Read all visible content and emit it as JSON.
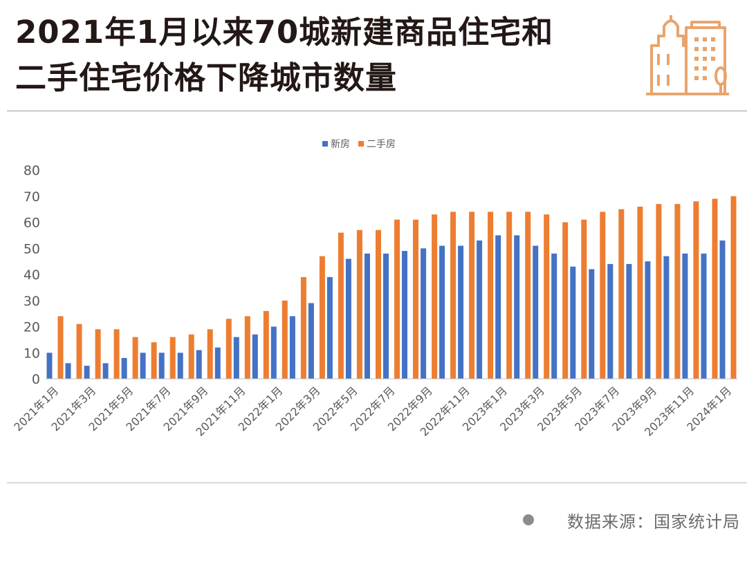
{
  "title": {
    "line1": "2021年1月以来70城新建商品住宅和",
    "line2": "二手住宅价格下降城市数量"
  },
  "source": "数据来源：国家统计局",
  "colors": {
    "new_house": "#4472C4",
    "second_hand": "#ED7D31",
    "accent": "#E8A46B",
    "text_dark": "#231815",
    "axis_text": "#595959"
  },
  "chart_data": {
    "type": "bar",
    "legend_position": "top-center",
    "grid": false,
    "ylim": [
      0,
      80
    ],
    "yticks": [
      0,
      10,
      20,
      30,
      40,
      50,
      60,
      70,
      80
    ],
    "categories": [
      "2021年1月",
      "2021年2月",
      "2021年3月",
      "2021年4月",
      "2021年5月",
      "2021年6月",
      "2021年7月",
      "2021年8月",
      "2021年9月",
      "2021年10月",
      "2021年11月",
      "2021年12月",
      "2022年1月",
      "2022年2月",
      "2022年3月",
      "2022年4月",
      "2022年5月",
      "2022年6月",
      "2022年7月",
      "2022年8月",
      "2022年9月",
      "2022年10月",
      "2022年11月",
      "2022年12月",
      "2023年1月",
      "2023年2月",
      "2023年3月",
      "2023年4月",
      "2023年5月",
      "2023年6月",
      "2023年7月",
      "2023年8月",
      "2023年9月",
      "2023年10月",
      "2023年11月",
      "2023年12月",
      "2024年1月"
    ],
    "x_tick_labels": [
      "2021年1月",
      "2021年3月",
      "2021年5月",
      "2021年7月",
      "2021年9月",
      "2021年11月",
      "2022年1月",
      "2022年3月",
      "2022年5月",
      "2022年7月",
      "2022年9月",
      "2022年11月",
      "2023年1月",
      "2023年3月",
      "2023年5月",
      "2023年7月",
      "2023年9月",
      "2023年11月",
      "2024年1月"
    ],
    "series": [
      {
        "name": "新房",
        "values": [
          10,
          6,
          5,
          6,
          8,
          10,
          10,
          10,
          11,
          12,
          16,
          17,
          20,
          24,
          29,
          39,
          46,
          48,
          48,
          49,
          50,
          51,
          51,
          53,
          55,
          55,
          51,
          48,
          43,
          42,
          44,
          44,
          45,
          47,
          48,
          48,
          53
        ]
      },
      {
        "name": "二手房",
        "values": [
          24,
          21,
          19,
          19,
          16,
          14,
          16,
          17,
          19,
          23,
          24,
          26,
          30,
          39,
          47,
          56,
          57,
          57,
          61,
          61,
          63,
          64,
          64,
          64,
          64,
          64,
          63,
          60,
          61,
          64,
          65,
          66,
          67,
          67,
          68,
          69,
          70
        ]
      }
    ]
  }
}
